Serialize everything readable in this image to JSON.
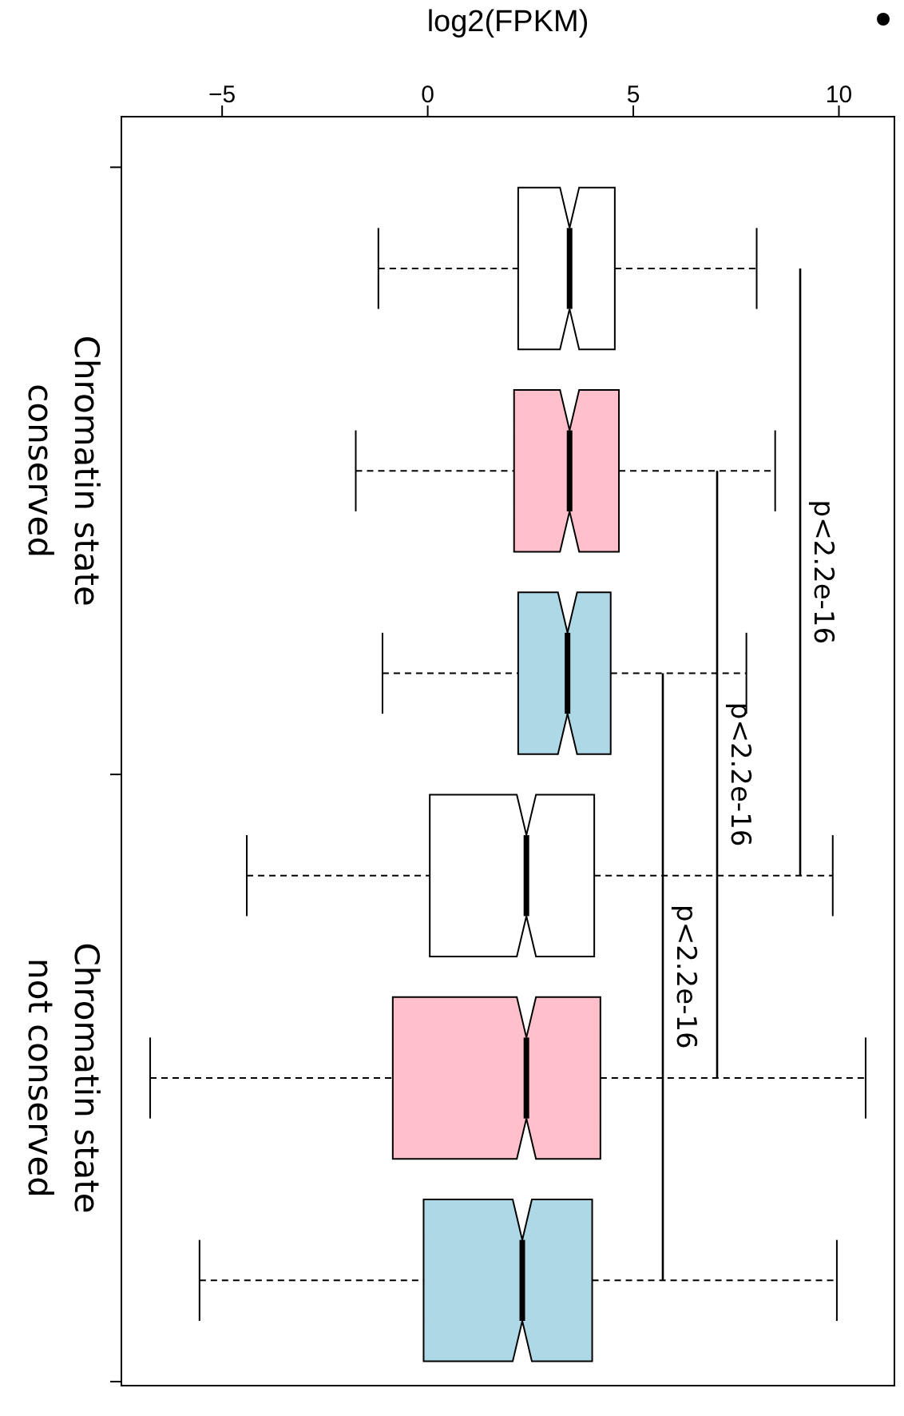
{
  "chart_data": {
    "type": "box",
    "orientation": "horizontal",
    "xlabel": "log2(FPKM)",
    "categories": [
      null,
      "Chromatin state conserved",
      null,
      null,
      "Chromatin state not conserved",
      null
    ],
    "colors": [
      "#ffffff",
      "#ffc0cb",
      "#add8e6",
      "#ffffff",
      "#ffc0cb",
      "#add8e6"
    ],
    "boxes": [
      {
        "low": -1.2,
        "q1": 2.2,
        "median": 3.45,
        "q3": 4.55,
        "high": 8.0
      },
      {
        "low": -1.75,
        "q1": 2.1,
        "median": 3.45,
        "q3": 4.65,
        "high": 8.45
      },
      {
        "low": -1.1,
        "q1": 2.2,
        "median": 3.4,
        "q3": 4.45,
        "high": 7.75
      },
      {
        "low": -4.4,
        "q1": 0.05,
        "median": 2.4,
        "q3": 4.05,
        "high": 9.85
      },
      {
        "low": -6.75,
        "q1": -0.85,
        "median": 2.4,
        "q3": 4.2,
        "high": 10.65
      },
      {
        "low": -5.55,
        "q1": -0.1,
        "median": 2.3,
        "q3": 4.0,
        "high": 9.95
      }
    ],
    "xlim": [
      -7.45,
      11.35
    ],
    "xticks": [
      -5,
      0,
      5,
      10
    ],
    "annotations": [
      "p<2.2e-16",
      "p<2.2e-16",
      "p<2.2e-16"
    ]
  }
}
